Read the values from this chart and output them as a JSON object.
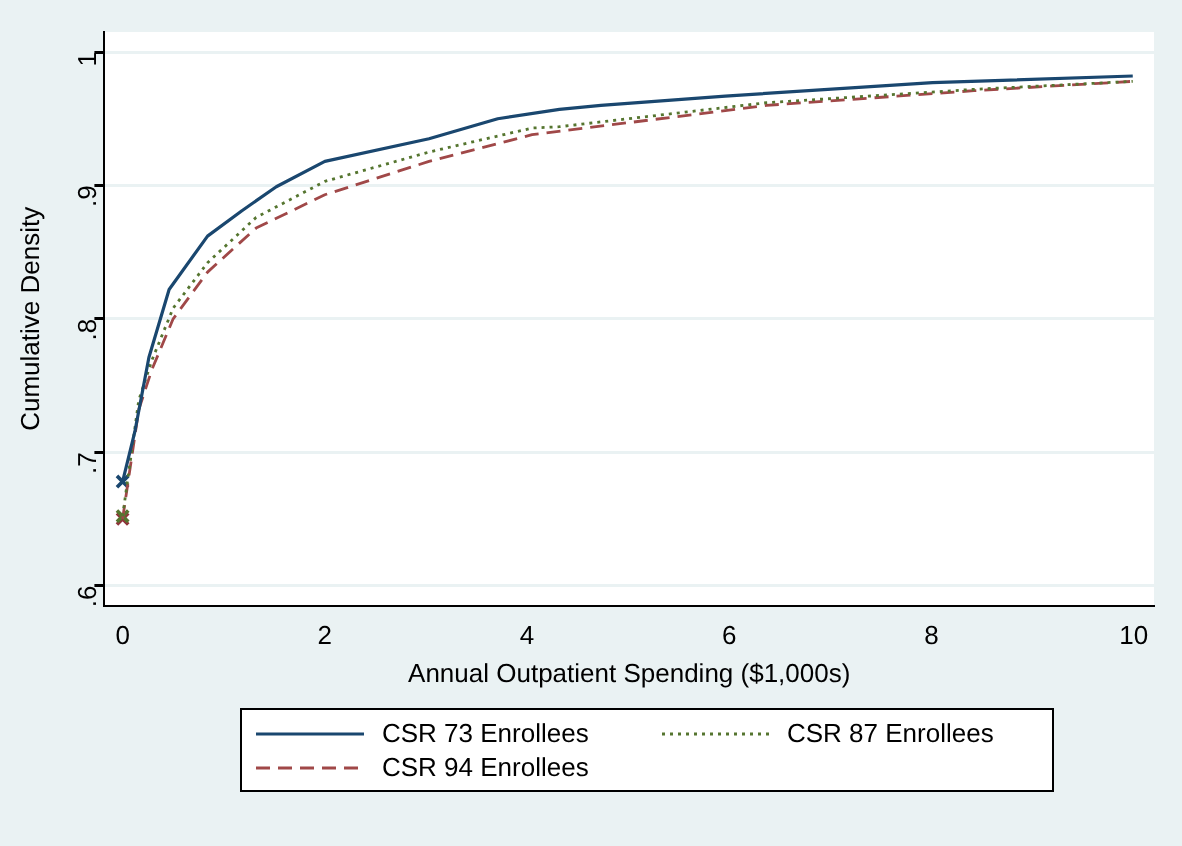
{
  "chart_data": {
    "type": "line",
    "xlabel": "Annual Outpatient Spending ($1,000s)",
    "ylabel": "Cumulative Density",
    "xlim": [
      -0.18,
      10.2
    ],
    "ylim": [
      0.585,
      1.015
    ],
    "xticks": [
      0,
      2,
      4,
      6,
      8,
      10
    ],
    "yticks": [
      {
        "value": 0.6,
        "label": ".6"
      },
      {
        "value": 0.7,
        "label": ".7"
      },
      {
        "value": 0.8,
        "label": ".8"
      },
      {
        "value": 0.9,
        "label": ".9"
      },
      {
        "value": 1,
        "label": "1"
      }
    ],
    "grid": "y",
    "legend": "bottom",
    "marker": "none",
    "series": [
      {
        "name": "CSR 73 Enrollees",
        "color": "#1a476f",
        "line_style": "solid",
        "x": [
          0,
          0.12,
          0.26,
          0.46,
          0.84,
          1.18,
          1.52,
          2.0,
          3.03,
          3.71,
          4.32,
          4.73,
          5.96,
          8.01,
          9.99
        ],
        "values": [
          0.678,
          0.715,
          0.771,
          0.822,
          0.862,
          0.881,
          0.899,
          0.918,
          0.935,
          0.95,
          0.957,
          0.96,
          0.967,
          0.977,
          0.982
        ]
      },
      {
        "name": "CSR 87 Enrollees",
        "color": "#55752f",
        "line_style": "dotted",
        "x": [
          0,
          0.16,
          0.29,
          0.5,
          0.84,
          1.32,
          2.0,
          3.03,
          4.05,
          4.32,
          6.37,
          8.42,
          9.99
        ],
        "values": [
          0.652,
          0.739,
          0.769,
          0.808,
          0.842,
          0.876,
          0.903,
          0.925,
          0.943,
          0.944,
          0.962,
          0.972,
          0.978
        ]
      },
      {
        "name": "CSR 94 Enrollees",
        "color": "#a04848",
        "line_style": "dashed",
        "x": [
          0,
          0.16,
          0.29,
          0.5,
          0.84,
          1.32,
          2.0,
          3.03,
          4.05,
          6.37,
          8.42,
          9.99
        ],
        "values": [
          0.65,
          0.732,
          0.762,
          0.8,
          0.835,
          0.868,
          0.893,
          0.918,
          0.938,
          0.96,
          0.971,
          0.978
        ]
      },
      {
        "type": "scatter",
        "marker": "cross",
        "color": "#1a476f",
        "x": [
          0
        ],
        "values": [
          0.678
        ]
      },
      {
        "type": "scatter",
        "marker": "cross",
        "color": "#55752f",
        "x": [
          0
        ],
        "values": [
          0.652
        ]
      },
      {
        "type": "scatter",
        "marker": "cross",
        "color": "#90353b",
        "x": [
          0
        ],
        "values": [
          0.65
        ]
      }
    ]
  }
}
